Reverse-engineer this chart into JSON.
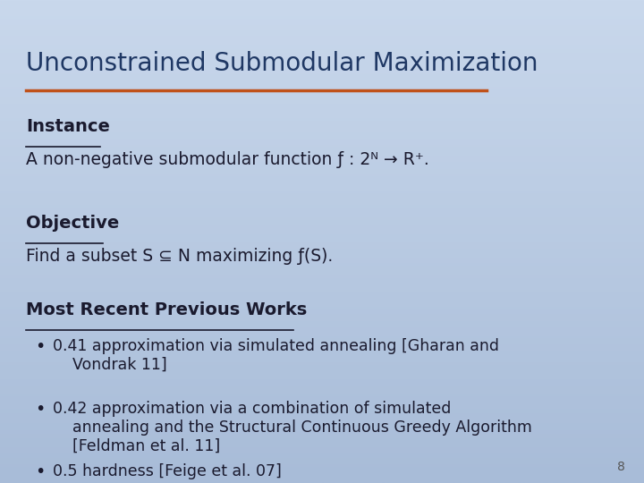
{
  "title": "Unconstrained Submodular Maximization",
  "title_color": "#1F3864",
  "title_underline_color": "#C0511A",
  "bg_color_top": "#C9D8EC",
  "bg_color_bottom": "#A8BCD8",
  "instance_label": "Instance",
  "instance_text": "A non-negative submodular function ƒ : 2ᴺ → R⁺.",
  "objective_label": "Objective",
  "objective_text": "Find a subset S ⊆ N maximizing ƒ(S).",
  "mrpw_label": "Most Recent Previous Works",
  "bullet1": "0.41 approximation via simulated annealing [Gharan and\n    Vondrak 11]",
  "bullet2": "0.42 approximation via a combination of simulated\n    annealing and the Structural Continuous Greedy Algorithm\n    [Feldman et al. 11]",
  "bullet3": "0.5 hardness [Feige et al. 07]",
  "page_number": "8",
  "text_color": "#1a1a2e",
  "label_color": "#1a1a2e"
}
